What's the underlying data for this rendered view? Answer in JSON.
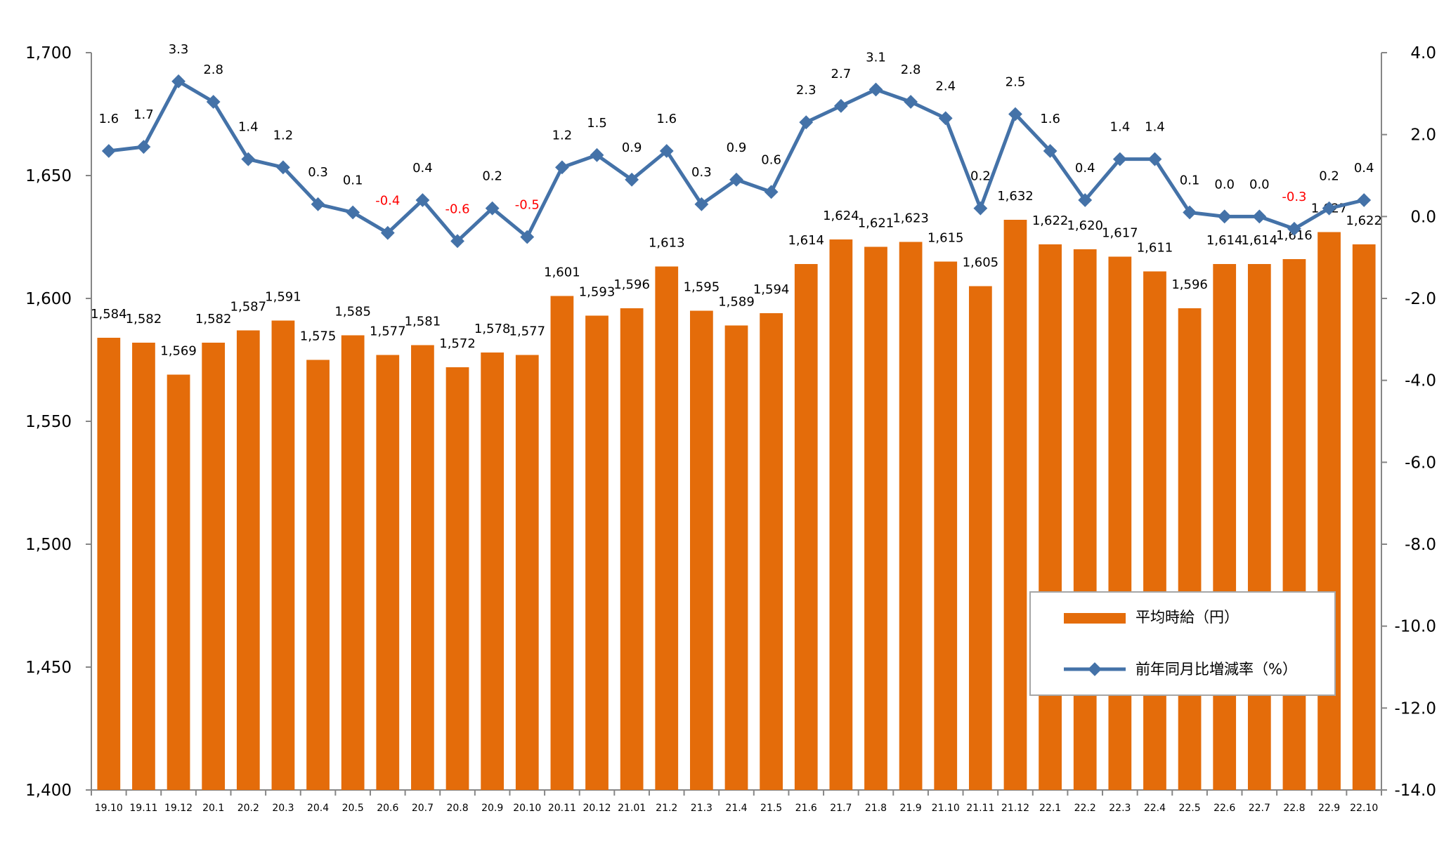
{
  "chart_data": {
    "type": "bar+line",
    "title": "",
    "xlabel": "",
    "ylabel": "",
    "categories": [
      "19.10",
      "19.11",
      "19.12",
      "20.1",
      "20.2",
      "20.3",
      "20.4",
      "20.5",
      "20.6",
      "20.7",
      "20.8",
      "20.9",
      "20.10",
      "20.11",
      "20.12",
      "21.01",
      "21.2",
      "21.3",
      "21.4",
      "21.5",
      "21.6",
      "21.7",
      "21.8",
      "21.9",
      "21.10",
      "21.11",
      "21.12",
      "22.1",
      "22.2",
      "22.3",
      "22.4",
      "22.5",
      "22.6",
      "22.7",
      "22.8",
      "22.9",
      "22.10"
    ],
    "y_left": {
      "min": 1400,
      "max": 1700,
      "ticks": [
        "1,400",
        "1,450",
        "1,500",
        "1,550",
        "1,600",
        "1,650",
        "1,700"
      ]
    },
    "y_right": {
      "min": -14.0,
      "max": 4.0,
      "ticks": [
        "-14.0",
        "-12.0",
        "-10.0",
        "-8.0",
        "-6.0",
        "-4.0",
        "-2.0",
        "0.0",
        "2.0",
        "4.0"
      ]
    },
    "series": [
      {
        "name": "平均時給（円）",
        "type": "bar",
        "axis": "left",
        "color": "#E46C0A",
        "values": [
          1584,
          1582,
          1569,
          1582,
          1587,
          1591,
          1575,
          1585,
          1577,
          1581,
          1572,
          1578,
          1577,
          1601,
          1593,
          1596,
          1613,
          1595,
          1589,
          1594,
          1614,
          1624,
          1621,
          1623,
          1615,
          1605,
          1632,
          1622,
          1620,
          1617,
          1611,
          1596,
          1614,
          1614,
          1616,
          1627,
          1622
        ],
        "labels": [
          "1,584",
          "1,582",
          "1,569",
          "1,582",
          "1,587",
          "1,591",
          "1,575",
          "1,585",
          "1,577",
          "1,581",
          "1,572",
          "1,578",
          "1,577",
          "1,601",
          "1,593",
          "1,596",
          "1,613",
          "1,595",
          "1,589",
          "1,594",
          "1,614",
          "1,624",
          "1,621",
          "1,623",
          "1,615",
          "1,605",
          "1,632",
          "1,622",
          "1,620",
          "1,617",
          "1,611",
          "1,596",
          "1,614",
          "1,614",
          "1,616",
          "1,627",
          "1,622"
        ]
      },
      {
        "name": "前年同月比増減率（%）",
        "type": "line",
        "axis": "right",
        "color": "#4472A8",
        "negative_label_color": "#FF0000",
        "values": [
          1.6,
          1.7,
          3.3,
          2.8,
          1.4,
          1.2,
          0.3,
          0.1,
          -0.4,
          0.4,
          -0.6,
          0.2,
          -0.5,
          1.2,
          1.5,
          0.9,
          1.6,
          0.3,
          0.9,
          0.6,
          2.3,
          2.7,
          3.1,
          2.8,
          2.4,
          0.2,
          2.5,
          1.6,
          0.4,
          1.4,
          1.4,
          0.1,
          0.0,
          0.0,
          -0.3,
          0.2,
          0.4
        ],
        "labels": [
          "1.6",
          "1.7",
          "3.3",
          "2.8",
          "1.4",
          "1.2",
          "0.3",
          "0.1",
          "-0.4",
          "0.4",
          "-0.6",
          "0.2",
          "-0.5",
          "1.2",
          "1.5",
          "0.9",
          "1.6",
          "0.3",
          "0.9",
          "0.6",
          "2.3",
          "2.7",
          "3.1",
          "2.8",
          "2.4",
          "0.2",
          "2.5",
          "1.6",
          "0.4",
          "1.4",
          "1.4",
          "0.1",
          "0.0",
          "0.0",
          "-0.3",
          "0.2",
          "0.4"
        ]
      }
    ],
    "legend": {
      "placement": "bottom-right",
      "items": [
        "平均時給（円）",
        "前年同月比増減率（%）"
      ]
    },
    "grid": false
  }
}
